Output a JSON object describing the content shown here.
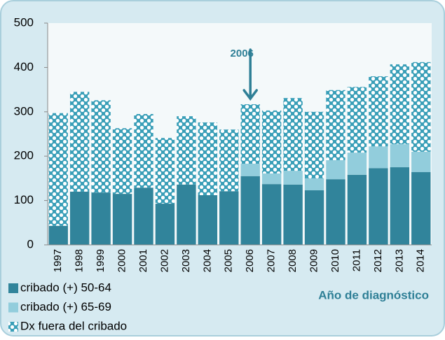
{
  "chart_data": {
    "type": "stacked_bar",
    "categories": [
      "1997",
      "1998",
      "1999",
      "2000",
      "2001",
      "2002",
      "2003",
      "2004",
      "2005",
      "2006",
      "2007",
      "2008",
      "2009",
      "2010",
      "2011",
      "2012",
      "2013",
      "2014"
    ],
    "series": [
      {
        "name": "cribado (+) 50-64",
        "color": "#31849b",
        "values": [
          43,
          120,
          118,
          115,
          129,
          93,
          136,
          112,
          121,
          155,
          137,
          136,
          123,
          148,
          158,
          173,
          175,
          164
        ]
      },
      {
        "name": "cribado (+) 65-69",
        "color": "#92cddc",
        "values": [
          0,
          0,
          0,
          0,
          0,
          0,
          0,
          0,
          0,
          28,
          24,
          31,
          27,
          43,
          50,
          49,
          52,
          46
        ]
      },
      {
        "name": "Dx fuera del cribado",
        "color": "#3a9fb8",
        "pattern": true,
        "values": [
          254,
          225,
          208,
          148,
          166,
          148,
          154,
          164,
          139,
          134,
          142,
          164,
          150,
          158,
          148,
          158,
          180,
          202
        ]
      }
    ],
    "ylim": [
      0,
      500
    ],
    "yticks": [
      0,
      100,
      200,
      300,
      400,
      500
    ],
    "xlabel": "Año de diagnóstico",
    "annotation": "2006",
    "legend": "bottom-left"
  }
}
